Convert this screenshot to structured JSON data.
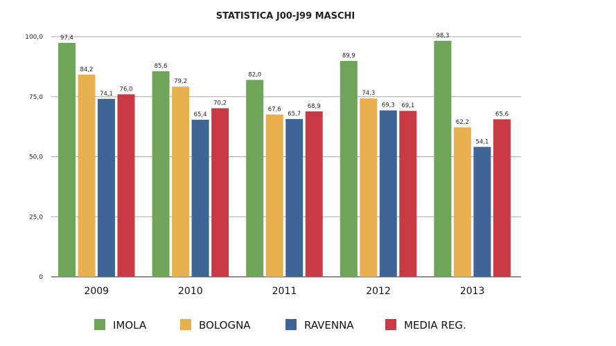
{
  "chart_data": {
    "type": "bar",
    "title": "STATISTICA J00-J99 MASCHI",
    "xlabel": "",
    "ylabel": "",
    "categories": [
      "2009",
      "2010",
      "2011",
      "2012",
      "2013"
    ],
    "ylim": [
      0,
      100
    ],
    "yticks": [
      0,
      25,
      50,
      75,
      100
    ],
    "ytick_labels": [
      "0",
      "25,0",
      "50,0",
      "75,0",
      "100,0"
    ],
    "grid": true,
    "legend_position": "bottom",
    "series": [
      {
        "name": "IMOLA",
        "color": "#6ea558",
        "values": [
          97.4,
          85.6,
          82.0,
          89.9,
          98.3
        ],
        "labels": [
          "97,4",
          "85,6",
          "82,0",
          "89,9",
          "98,3"
        ]
      },
      {
        "name": "BOLOGNA",
        "color": "#e9b04f",
        "values": [
          84.2,
          79.2,
          67.6,
          74.3,
          62.2
        ],
        "labels": [
          "84,2",
          "79,2",
          "67,6",
          "74,3",
          "62,2"
        ]
      },
      {
        "name": "RAVENNA",
        "color": "#3f6496",
        "values": [
          74.1,
          65.4,
          65.7,
          69.3,
          54.1
        ],
        "labels": [
          "74,1",
          "65,4",
          "65,7",
          "69,3",
          "54,1"
        ]
      },
      {
        "name": "MEDIA REG.",
        "color": "#c83a44",
        "values": [
          76.0,
          70.2,
          68.9,
          69.1,
          65.6
        ],
        "labels": [
          "76,0",
          "70,2",
          "68,9",
          "69,1",
          "65,6"
        ]
      }
    ]
  }
}
